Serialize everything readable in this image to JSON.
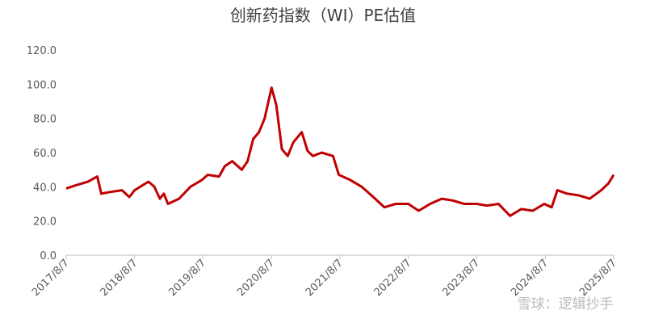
{
  "chart_data": {
    "type": "line",
    "title": "创新药指数（WI）PE估值",
    "x": [
      "2017-08-07",
      "2017-10-01",
      "2017-12-01",
      "2018-01-20",
      "2018-02-10",
      "2018-04-01",
      "2018-06-01",
      "2018-07-10",
      "2018-08-07",
      "2018-09-20",
      "2018-10-20",
      "2018-11-20",
      "2018-12-20",
      "2019-01-10",
      "2019-02-01",
      "2019-04-01",
      "2019-06-01",
      "2019-08-01",
      "2019-09-01",
      "2019-11-01",
      "2019-12-01",
      "2020-01-10",
      "2020-03-01",
      "2020-04-01",
      "2020-05-01",
      "2020-06-01",
      "2020-07-01",
      "2020-08-07",
      "2020-09-01",
      "2020-10-01",
      "2020-11-01",
      "2020-12-01",
      "2021-01-15",
      "2021-02-15",
      "2021-03-15",
      "2021-05-01",
      "2021-07-01",
      "2021-08-01",
      "2021-10-01",
      "2021-12-01",
      "2022-02-01",
      "2022-04-01",
      "2022-06-01",
      "2022-08-07",
      "2022-10-01",
      "2022-12-01",
      "2023-02-01",
      "2023-04-01",
      "2023-06-01",
      "2023-08-07",
      "2023-10-01",
      "2023-12-01",
      "2024-02-01",
      "2024-04-01",
      "2024-06-01",
      "2024-08-01",
      "2024-09-10",
      "2024-10-10",
      "2024-12-01",
      "2025-02-01",
      "2025-04-01",
      "2025-06-01",
      "2025-07-10",
      "2025-08-07"
    ],
    "series": [
      {
        "name": "PE",
        "color": "#c00000",
        "values": [
          39,
          41,
          43,
          46,
          36,
          37,
          38,
          34,
          38,
          41,
          43,
          40,
          33,
          36,
          30,
          33,
          40,
          44,
          47,
          46,
          52,
          55,
          50,
          55,
          68,
          72,
          80,
          98,
          88,
          62,
          58,
          66,
          72,
          61,
          58,
          60,
          58,
          47,
          44,
          40,
          34,
          28,
          30,
          30,
          26,
          30,
          33,
          32,
          30,
          30,
          29,
          30,
          23,
          27,
          26,
          30,
          28,
          38,
          36,
          35,
          33,
          38,
          42,
          47
        ]
      }
    ],
    "xticks": [
      {
        "value": "2017-08-07",
        "label": "2017/8/7"
      },
      {
        "value": "2018-08-07",
        "label": "2018/8/7"
      },
      {
        "value": "2019-08-07",
        "label": "2019/8/7"
      },
      {
        "value": "2020-08-07",
        "label": "2020/8/7"
      },
      {
        "value": "2021-08-07",
        "label": "2021/8/7"
      },
      {
        "value": "2022-08-07",
        "label": "2022/8/7"
      },
      {
        "value": "2023-08-07",
        "label": "2023/8/7"
      },
      {
        "value": "2024-08-07",
        "label": "2024/8/7"
      },
      {
        "value": "2025-08-07",
        "label": "2025/8/7"
      }
    ],
    "xlim": [
      "2017-08-07",
      "2025-08-07"
    ],
    "ylim": [
      0,
      120
    ],
    "yticks": [
      {
        "value": 0,
        "label": "0.0"
      },
      {
        "value": 20,
        "label": "20.0"
      },
      {
        "value": 40,
        "label": "40.0"
      },
      {
        "value": 60,
        "label": "60.0"
      },
      {
        "value": 80,
        "label": "80.0"
      },
      {
        "value": 100,
        "label": "100.0"
      },
      {
        "value": 120,
        "label": "120.0"
      }
    ],
    "watermark": "雪球：逻辑抄手"
  }
}
